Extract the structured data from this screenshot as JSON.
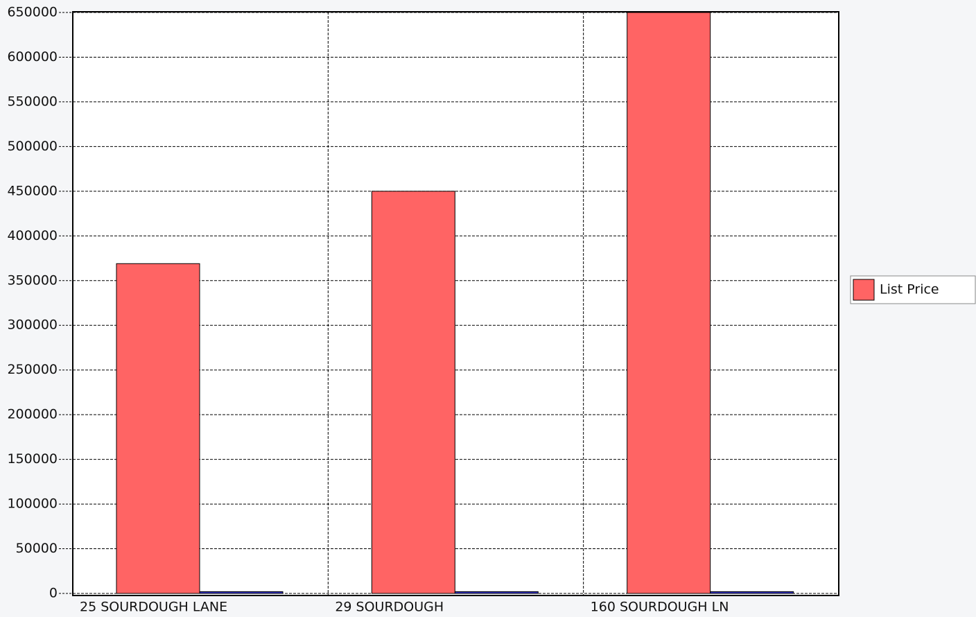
{
  "chart_data": {
    "type": "bar",
    "categories": [
      "25 SOURDOUGH LANE",
      "29 SOURDOUGH",
      "160 SOURDOUGH LN"
    ],
    "series": [
      {
        "name": "List Price",
        "color": "#ff6464",
        "values": [
          369000,
          450000,
          650000
        ]
      },
      {
        "color": "#3030c0",
        "values": [
          2000,
          2000,
          2000
        ]
      }
    ],
    "ylim": [
      0,
      650000
    ],
    "yticks": [
      0,
      50000,
      100000,
      150000,
      200000,
      250000,
      300000,
      350000,
      400000,
      450000,
      500000,
      550000,
      600000,
      650000
    ],
    "grid": true,
    "legend": "right"
  }
}
